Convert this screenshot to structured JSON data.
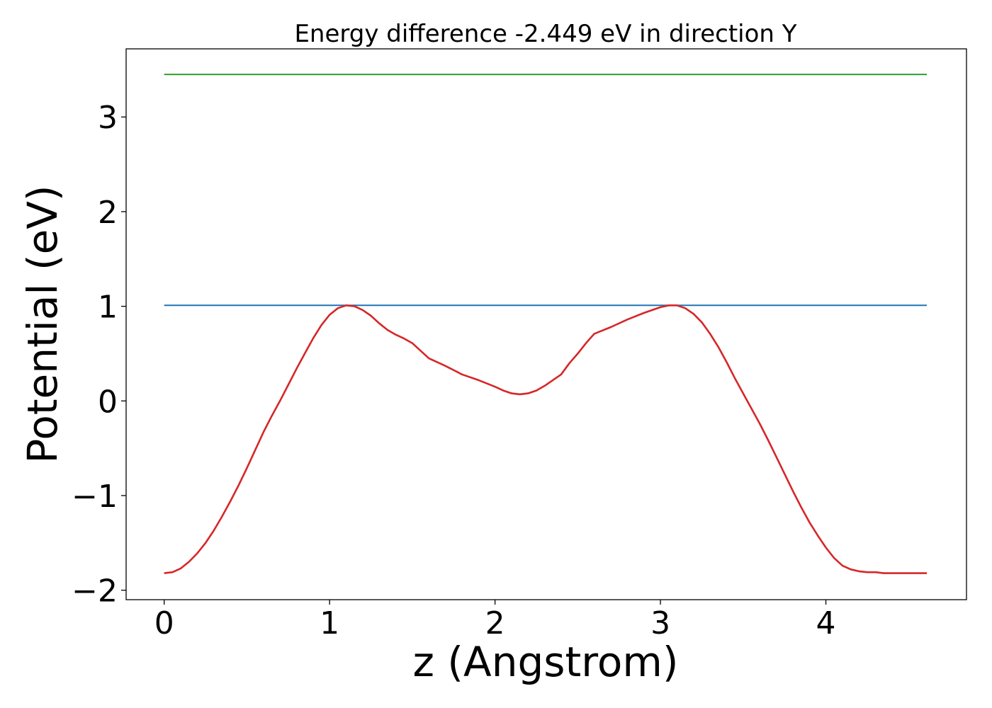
{
  "chart_data": {
    "type": "line",
    "title": "Energy difference -2.449 eV in direction Y",
    "xlabel": "z (Angstrom)",
    "ylabel": "Potential (eV)",
    "xlim": [
      -0.23,
      4.85
    ],
    "ylim": [
      -2.1,
      3.72
    ],
    "xticks": [
      0,
      1,
      2,
      3,
      4
    ],
    "xtick_labels": [
      "0",
      "1",
      "2",
      "3",
      "4"
    ],
    "yticks": [
      -2,
      -1,
      0,
      1,
      2,
      3
    ],
    "ytick_labels": [
      "−2",
      "−1",
      "0",
      "1",
      "2",
      "3"
    ],
    "grid": false,
    "series": [
      {
        "color": "#2ca02c",
        "x": [
          0,
          4.61
        ],
        "y": [
          3.45,
          3.45
        ]
      },
      {
        "color": "#1f77b4",
        "x": [
          0,
          4.61
        ],
        "y": [
          1.01,
          1.01
        ]
      },
      {
        "color": "#d62728",
        "x": [
          0,
          0.05,
          0.1,
          0.15,
          0.2,
          0.25,
          0.3,
          0.35,
          0.4,
          0.45,
          0.5,
          0.55,
          0.6,
          0.65,
          0.7,
          0.75,
          0.8,
          0.85,
          0.9,
          0.95,
          1.0,
          1.05,
          1.1,
          1.15,
          1.2,
          1.25,
          1.3,
          1.35,
          1.4,
          1.45,
          1.5,
          1.55,
          1.6,
          1.7,
          1.8,
          1.9,
          2.0,
          2.05,
          2.1,
          2.15,
          2.2,
          2.25,
          2.3,
          2.35,
          2.4,
          2.45,
          2.5,
          2.55,
          2.6,
          2.7,
          2.8,
          2.9,
          3.0,
          3.05,
          3.1,
          3.15,
          3.2,
          3.25,
          3.3,
          3.35,
          3.4,
          3.45,
          3.5,
          3.55,
          3.6,
          3.65,
          3.7,
          3.75,
          3.8,
          3.85,
          3.9,
          3.95,
          4.0,
          4.05,
          4.1,
          4.15,
          4.2,
          4.25,
          4.3,
          4.35,
          4.4,
          4.45,
          4.5,
          4.55,
          4.61
        ],
        "y": [
          -1.82,
          -1.81,
          -1.77,
          -1.7,
          -1.61,
          -1.5,
          -1.37,
          -1.22,
          -1.06,
          -0.89,
          -0.71,
          -0.52,
          -0.33,
          -0.16,
          0.0,
          0.17,
          0.34,
          0.5,
          0.66,
          0.8,
          0.91,
          0.98,
          1.01,
          1.0,
          0.96,
          0.9,
          0.82,
          0.75,
          0.7,
          0.66,
          0.61,
          0.53,
          0.45,
          0.37,
          0.28,
          0.22,
          0.15,
          0.11,
          0.08,
          0.07,
          0.08,
          0.11,
          0.16,
          0.22,
          0.28,
          0.4,
          0.5,
          0.61,
          0.71,
          0.78,
          0.86,
          0.93,
          0.99,
          1.01,
          1.01,
          0.98,
          0.92,
          0.83,
          0.71,
          0.57,
          0.41,
          0.24,
          0.08,
          -0.08,
          -0.24,
          -0.41,
          -0.59,
          -0.77,
          -0.95,
          -1.12,
          -1.28,
          -1.42,
          -1.55,
          -1.66,
          -1.74,
          -1.78,
          -1.8,
          -1.81,
          -1.81,
          -1.82,
          -1.82,
          -1.82,
          -1.82,
          -1.82,
          -1.82
        ]
      }
    ]
  }
}
